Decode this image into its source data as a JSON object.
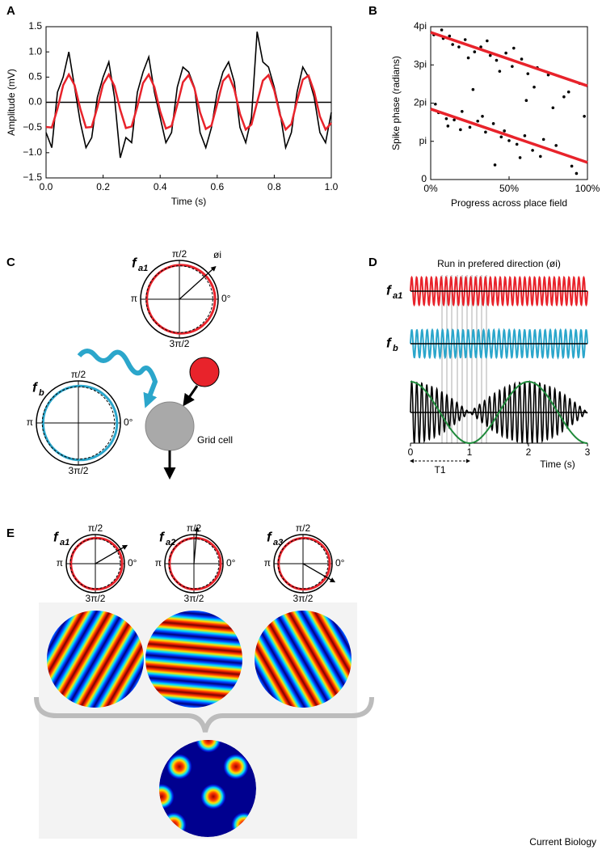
{
  "chart_data": [
    {
      "panel": "A",
      "type": "line",
      "x_label": "Time (s)",
      "y_label": "Amplitude (mV)",
      "x": [
        0,
        0.02,
        0.04,
        0.06,
        0.08,
        0.1,
        0.12,
        0.14,
        0.16,
        0.18,
        0.2,
        0.22,
        0.24,
        0.26,
        0.28,
        0.3,
        0.32,
        0.34,
        0.36,
        0.38,
        0.4,
        0.42,
        0.44,
        0.46,
        0.48,
        0.5,
        0.52,
        0.54,
        0.56,
        0.58,
        0.6,
        0.62,
        0.64,
        0.66,
        0.68,
        0.7,
        0.72,
        0.74,
        0.76,
        0.78,
        0.8,
        0.82,
        0.84,
        0.86,
        0.88,
        0.9,
        0.92,
        0.94,
        0.96,
        0.98,
        1
      ],
      "series": [
        {
          "color": "#000000",
          "values": [
            -0.6,
            -0.9,
            0.2,
            0.5,
            1.0,
            0.3,
            -0.4,
            -0.9,
            -0.7,
            0.1,
            0.5,
            0.8,
            0.1,
            -1.1,
            -0.7,
            -0.8,
            0.2,
            0.6,
            0.9,
            0.2,
            -0.3,
            -0.8,
            -0.6,
            0.3,
            0.7,
            0.6,
            0.3,
            -0.6,
            -0.9,
            -0.5,
            0.2,
            0.6,
            0.8,
            0.4,
            -0.5,
            -0.8,
            -0.3,
            1.4,
            0.8,
            0.7,
            0.3,
            -0.2,
            -0.9,
            -0.6,
            0.2,
            0.7,
            0.5,
            0.1,
            -0.6,
            -0.8,
            -0.2
          ]
        },
        {
          "color": "#e8232b",
          "values": [
            -0.49,
            -0.5,
            -0.13,
            0.34,
            0.55,
            0.34,
            -0.13,
            -0.5,
            -0.49,
            -0.1,
            0.36,
            0.55,
            0.32,
            -0.15,
            -0.51,
            -0.48,
            -0.08,
            0.38,
            0.55,
            0.3,
            -0.18,
            -0.52,
            -0.47,
            -0.05,
            0.4,
            0.54,
            0.28,
            -0.2,
            -0.53,
            -0.46,
            -0.03,
            0.42,
            0.54,
            0.26,
            -0.23,
            -0.54,
            -0.44,
            0,
            0.43,
            0.54,
            0.24,
            -0.25,
            -0.54,
            -0.43,
            0.03,
            0.45,
            0.53,
            0.21,
            -0.28,
            -0.54,
            -0.41
          ]
        }
      ],
      "xlim": [
        0,
        1
      ],
      "ylim": [
        -1.5,
        1.5
      ],
      "xticks": [
        {
          "value": 0,
          "label": "0.0"
        },
        {
          "value": 0.2,
          "label": "0.2"
        },
        {
          "value": 0.4,
          "label": "0.4"
        },
        {
          "value": 0.6,
          "label": "0.6"
        },
        {
          "value": 0.8,
          "label": "0.8"
        },
        {
          "value": 1,
          "label": "1.0"
        }
      ],
      "yticks": [
        {
          "value": -1.5,
          "label": "−1.5"
        },
        {
          "value": -1,
          "label": "−1.0"
        },
        {
          "value": -0.5,
          "label": "−0.5"
        },
        {
          "value": 0,
          "label": "0.0"
        },
        {
          "value": 0.5,
          "label": "0.5"
        },
        {
          "value": 1,
          "label": "1.0"
        },
        {
          "value": 1.5,
          "label": "1.5"
        }
      ]
    },
    {
      "panel": "B",
      "type": "scatter",
      "x_label": "Progress across place field",
      "y_label": "Spike phase (radians)",
      "color": "#000000",
      "x": [
        2,
        5,
        8,
        10,
        12,
        15,
        18,
        20,
        22,
        25,
        28,
        30,
        32,
        35,
        38,
        40,
        42,
        45,
        48,
        50,
        52,
        55,
        58,
        60,
        62,
        65,
        68,
        70,
        75,
        80,
        85,
        90,
        95,
        98,
        3,
        7,
        11,
        14,
        19,
        24,
        27,
        33,
        36,
        41,
        44,
        47,
        53,
        57,
        61,
        66,
        72,
        78,
        88,
        93
      ],
      "values": [
        11.9,
        5.5,
        11.6,
        5.0,
        11.8,
        4.9,
        10.9,
        5.6,
        11.5,
        4.3,
        10.5,
        4.8,
        10.9,
        3.9,
        10.2,
        4.6,
        9.8,
        3.5,
        10.4,
        3.2,
        9.3,
        2.9,
        9.9,
        3.6,
        8.7,
        2.4,
        9.2,
        1.9,
        8.6,
        2.8,
        6.8,
        1.1,
        7.9,
        5.2,
        6.2,
        12.3,
        4.4,
        11.1,
        4.1,
        10.0,
        7.4,
        5.2,
        11.4,
        1.2,
        8.9,
        4.0,
        10.8,
        1.8,
        6.5,
        7.6,
        3.3,
        5.9,
        7.2,
        0.5
      ],
      "lines": [
        {
          "color": "#e8232b",
          "x": [
            0,
            100
          ],
          "values": [
            12.1,
            7.7
          ]
        },
        {
          "color": "#e8232b",
          "x": [
            0,
            100
          ],
          "values": [
            5.8,
            1.4
          ]
        }
      ],
      "xlim": [
        0,
        100
      ],
      "ylim": [
        0,
        12.566
      ],
      "xticks": [
        {
          "value": 0,
          "label": "0%"
        },
        {
          "value": 50,
          "label": "50%"
        },
        {
          "value": 100,
          "label": "100%"
        }
      ],
      "yticks": [
        0,
        {
          "value": 3.1416,
          "label": "pi"
        },
        {
          "value": 6.2832,
          "label": "2pi"
        },
        {
          "value": 9.4248,
          "label": "3pi"
        },
        {
          "value": 12.566,
          "label": "4pi"
        }
      ]
    },
    {
      "panel": "D",
      "type": "oscillation",
      "title": "Run in prefered direction (øi)",
      "x_label": "Time (s)",
      "interval_label": "T1",
      "interval": [
        0,
        1
      ],
      "series": [
        {
          "name": "f",
          "subscript": "a1",
          "color": "#e8232b",
          "frequency": 12
        },
        {
          "name": "f",
          "subscript": "b",
          "color": "#2ba6cb",
          "frequency": 11.5
        },
        {
          "color": "#000000",
          "envelope_color": "#1f8a3b"
        }
      ],
      "xlim": [
        0,
        3
      ],
      "xticks": [
        0,
        1,
        2,
        3
      ]
    }
  ],
  "panel_c": {
    "letter": "C",
    "top_dial": {
      "label": "f",
      "subscript": "a1",
      "angle_label": "øi",
      "labels": [
        "π/2",
        "π",
        "0°",
        "3π/2"
      ]
    },
    "bottom_dial": {
      "label": "f",
      "subscript": "b",
      "labels": [
        "π/2",
        "π",
        "0°",
        "3π/2"
      ]
    },
    "cell_label": "Grid cell"
  },
  "panel_e": {
    "letter": "E",
    "dials": [
      {
        "label": "f",
        "subscript": "a1",
        "labels": [
          "π/2",
          "π",
          "0°",
          "3π/2"
        ]
      },
      {
        "label": "f",
        "subscript": "a2",
        "labels": [
          "π/2",
          "π",
          "0°",
          "3π/2"
        ]
      },
      {
        "label": "f",
        "subscript": "a3",
        "labels": [
          "π/2",
          "π",
          "0°",
          "3π/2"
        ]
      }
    ]
  },
  "credit": "Current Biology"
}
